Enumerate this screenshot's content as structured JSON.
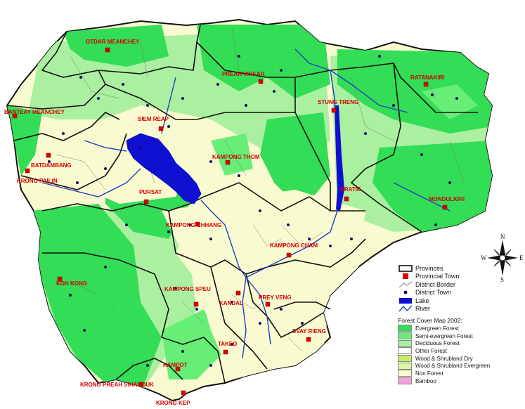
{
  "provinces": [
    "OTDAR MEANCHEY",
    "PREAH VIHEAR",
    "RATANAKIRI",
    "BANTEAY MEANCHEY",
    "SIEM REAP",
    "STUNG TRENG",
    "BATDAMBANG",
    "KRONG PAILIN",
    "PURSAT",
    "KAMPONG THOM",
    "KRATIE",
    "MONDULKIRI",
    "KAMPONG CHHANG",
    "KAMPONG CHAM",
    "KOH KONG",
    "KAMPONG SPEU",
    "KANDAL",
    "PREY VENG",
    "SVAY RIENG",
    "TAKEO",
    "KAMPOT",
    "KRONG PREAH SIHANOUK",
    "KRONG KEP"
  ],
  "legend": {
    "items": [
      {
        "label": "Provinces",
        "icon": "province-box-icon"
      },
      {
        "label": "Provincial Town",
        "icon": "red-square-icon"
      },
      {
        "label": "District Border",
        "icon": "district-border-icon"
      },
      {
        "label": "District Town",
        "icon": "blue-dot-icon"
      },
      {
        "label": "Lake",
        "icon": "lake-icon"
      },
      {
        "label": "River",
        "icon": "river-icon"
      }
    ],
    "forest_title": "Forest Cover Map 2002:",
    "forest": [
      {
        "label": "Evergreen Forest",
        "color": "#33dd55"
      },
      {
        "label": "Semi-evergreen Forest",
        "color": "#66ee77"
      },
      {
        "label": "Deciduous Forest",
        "color": "#aaf0a0"
      },
      {
        "label": "Other Forest",
        "color": "#ffffff"
      },
      {
        "label": "Wood & Shrubland Dry",
        "color": "#c8f060"
      },
      {
        "label": "Wood & Shrubland Evergreen",
        "color": "#dcf8a0"
      },
      {
        "label": "Non Forest",
        "color": "#fafad0"
      },
      {
        "label": "Bamboo",
        "color": "#f5a0dc"
      }
    ]
  },
  "compass": {
    "n": "N",
    "s": "S",
    "e": "E",
    "w": "W"
  },
  "colors": {
    "province_label": "#d40000",
    "lake": "#1010d0",
    "river": "#2040c0",
    "town": "#e00000",
    "district_town": "#101060",
    "border": "#111111"
  }
}
